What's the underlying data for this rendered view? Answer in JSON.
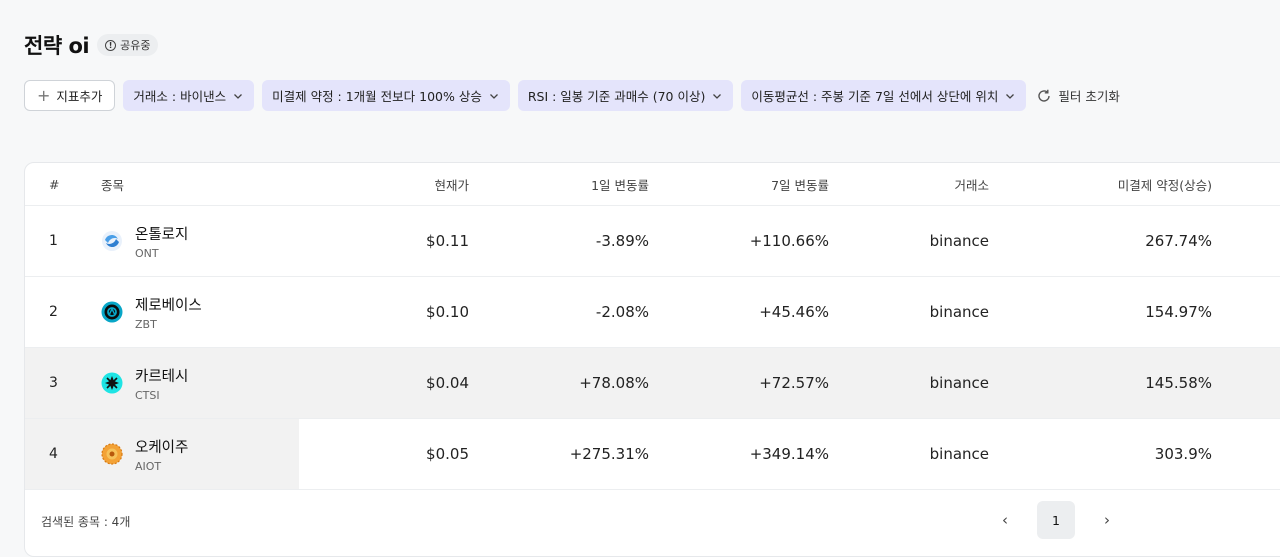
{
  "header": {
    "title": "전략 oi",
    "share_badge": "공유중"
  },
  "filters": {
    "add_label": "지표추가",
    "chips": [
      "거래소 : 바이낸스",
      "미결제 약정 : 1개월 전보다 100% 상승",
      "RSI : 일봉 기준 과매수 (70 이상)",
      "이동평균선 : 주봉 기준 7일 선에서 상단에 위치"
    ],
    "reset_label": "필터 초기화"
  },
  "table": {
    "columns": [
      "#",
      "종목",
      "현재가",
      "1일 변동률",
      "7일 변동률",
      "거래소",
      "미결제 약정(상승)"
    ],
    "rows": [
      {
        "num": "1",
        "name": "온톨로지",
        "ticker": "ONT",
        "price": "$0.11",
        "d1": "-3.89%",
        "d7": "+110.66%",
        "exchange": "binance",
        "oi": "267.74%"
      },
      {
        "num": "2",
        "name": "제로베이스",
        "ticker": "ZBT",
        "price": "$0.10",
        "d1": "-2.08%",
        "d7": "+45.46%",
        "exchange": "binance",
        "oi": "154.97%"
      },
      {
        "num": "3",
        "name": "카르테시",
        "ticker": "CTSI",
        "price": "$0.04",
        "d1": "+78.08%",
        "d7": "+72.57%",
        "exchange": "binance",
        "oi": "145.58%"
      },
      {
        "num": "4",
        "name": "오케이주",
        "ticker": "AIOT",
        "price": "$0.05",
        "d1": "+275.31%",
        "d7": "+349.14%",
        "exchange": "binance",
        "oi": "303.9%"
      }
    ]
  },
  "footer": {
    "result_count": "검색된 종목 : 4개",
    "current_page": "1"
  },
  "icons": {
    "coin_logos": [
      "ontology-logo-icon",
      "zerobase-logo-icon",
      "cartesi-logo-icon",
      "aiot-logo-icon"
    ]
  },
  "colors": {
    "chip_bg": "#e4e4fb",
    "highlight_row": "#f2f2f2"
  }
}
